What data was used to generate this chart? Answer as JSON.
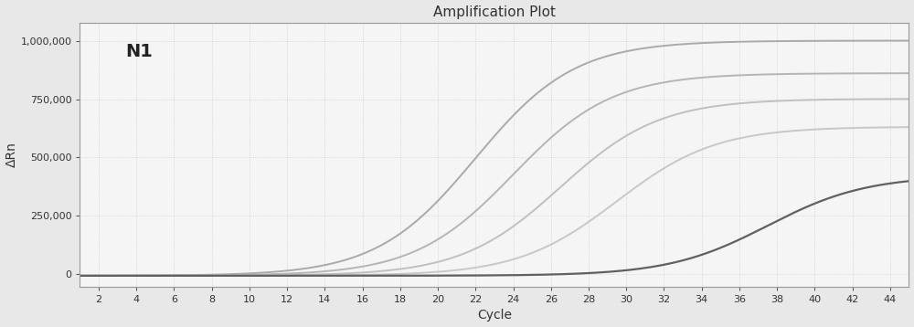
{
  "title": "Amplification Plot",
  "xlabel": "Cycle",
  "ylabel": "ΔRn",
  "annotation": "N1",
  "xlim": [
    1,
    45
  ],
  "ylim": [
    -55000,
    1080000
  ],
  "xticks": [
    2,
    4,
    6,
    8,
    10,
    12,
    14,
    16,
    18,
    20,
    22,
    24,
    26,
    28,
    30,
    32,
    34,
    36,
    38,
    40,
    42,
    44
  ],
  "yticks": [
    0,
    250000,
    500000,
    750000,
    1000000
  ],
  "ytick_labels": [
    "0",
    "250,000",
    "500,000",
    "750,000",
    "1,000,000"
  ],
  "background_color": "#e8e8e8",
  "plot_bg_color": "#f5f5f5",
  "grid_color": "#c8c8c8",
  "curves": [
    {
      "ct": 22.0,
      "max_rn": 1010000,
      "k": 0.38,
      "color": "#aaaaaa",
      "lw": 1.4
    },
    {
      "ct": 24.0,
      "max_rn": 870000,
      "k": 0.38,
      "color": "#b5b5b5",
      "lw": 1.4
    },
    {
      "ct": 26.5,
      "max_rn": 760000,
      "k": 0.38,
      "color": "#c0c0c0",
      "lw": 1.4
    },
    {
      "ct": 29.5,
      "max_rn": 640000,
      "k": 0.38,
      "color": "#c8c8c8",
      "lw": 1.4
    },
    {
      "ct": 37.5,
      "max_rn": 430000,
      "k": 0.38,
      "color": "#606060",
      "lw": 1.6
    }
  ]
}
